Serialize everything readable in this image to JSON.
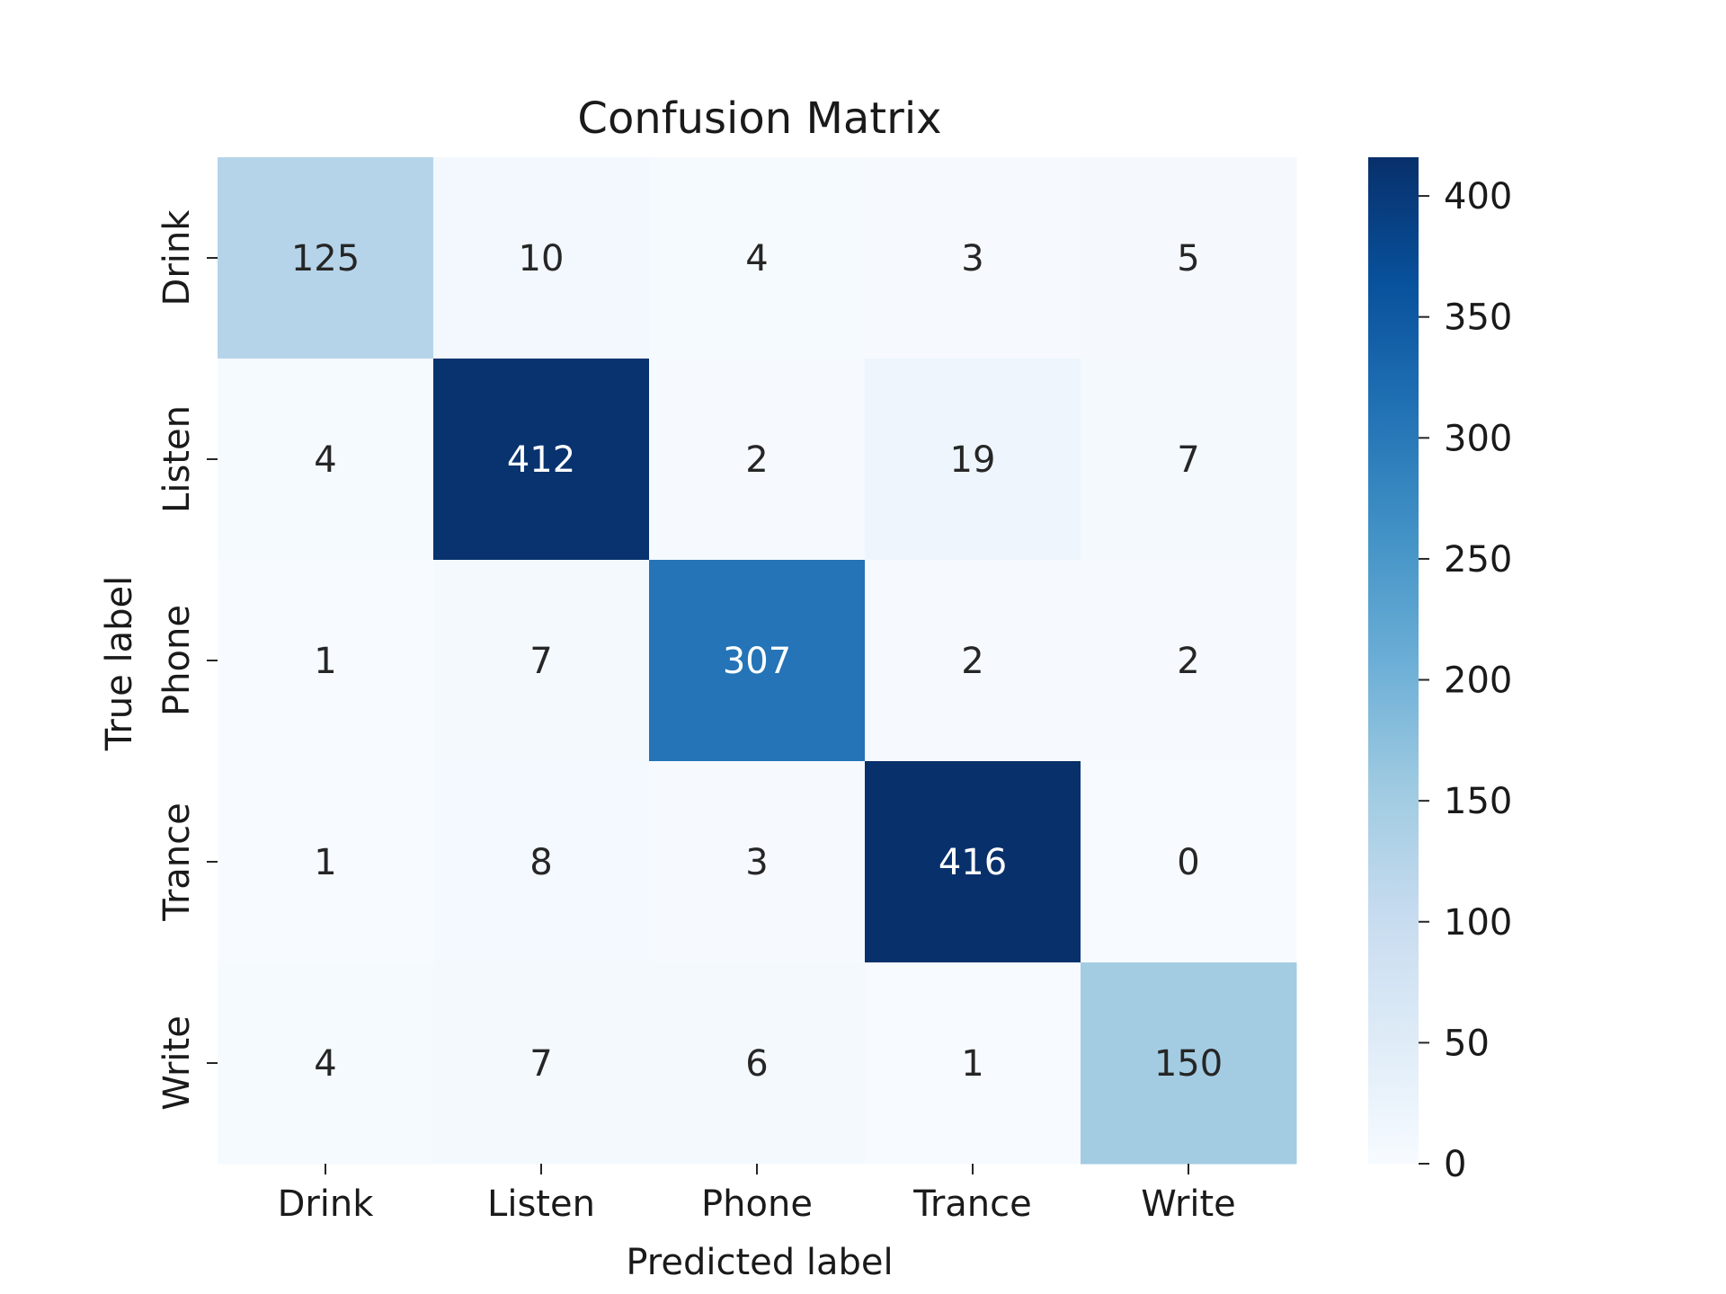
{
  "chart_data": {
    "type": "heatmap",
    "title": "Confusion Matrix",
    "xlabel": "Predicted label",
    "ylabel": "True label",
    "x_categories": [
      "Drink",
      "Listen",
      "Phone",
      "Trance",
      "Write"
    ],
    "y_categories": [
      "Drink",
      "Listen",
      "Phone",
      "Trance",
      "Write"
    ],
    "values": [
      [
        125,
        10,
        4,
        3,
        5
      ],
      [
        4,
        412,
        2,
        19,
        7
      ],
      [
        1,
        7,
        307,
        2,
        2
      ],
      [
        1,
        8,
        3,
        416,
        0
      ],
      [
        4,
        7,
        6,
        1,
        150
      ]
    ],
    "colorbar": {
      "colormap": "Blues",
      "min": 0,
      "max": 416,
      "ticks": [
        0,
        50,
        100,
        150,
        200,
        250,
        300,
        350,
        400
      ]
    },
    "grid": false
  }
}
